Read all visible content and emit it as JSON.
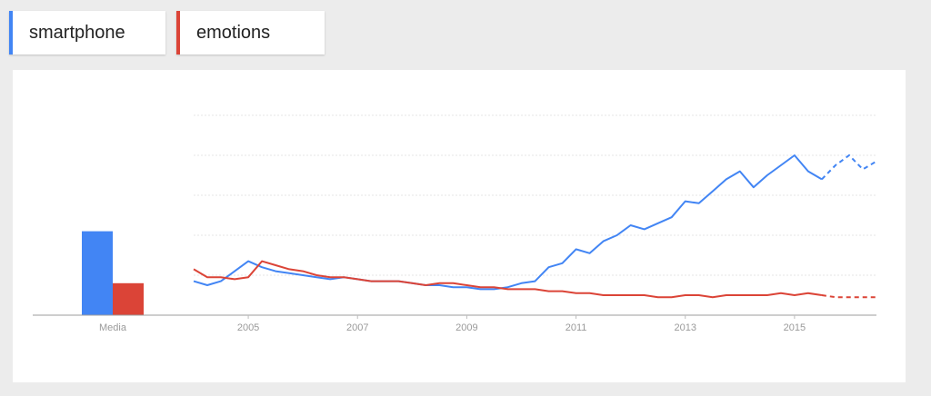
{
  "terms": [
    {
      "label": "smartphone",
      "color": "#4285f4"
    },
    {
      "label": "emotions",
      "color": "#db4437"
    }
  ],
  "average_label": "Media",
  "chart_data": [
    {
      "type": "bar",
      "categories": [
        "Media"
      ],
      "series": [
        {
          "name": "smartphone",
          "values": [
            21
          ],
          "color": "#4285f4"
        },
        {
          "name": "emotions",
          "values": [
            8
          ],
          "color": "#db4437"
        }
      ],
      "ylim": [
        0,
        50
      ]
    },
    {
      "type": "line",
      "xlim": [
        2004.0,
        2016.5
      ],
      "ylim": [
        0,
        100
      ],
      "x_ticks": [
        "2005",
        "2007",
        "2009",
        "2011",
        "2013",
        "2015"
      ],
      "grid": true,
      "forecast_from": 2015.5,
      "series": [
        {
          "name": "smartphone",
          "color": "#4285f4",
          "x": [
            2004.0,
            2004.25,
            2004.5,
            2004.75,
            2005.0,
            2005.25,
            2005.5,
            2005.75,
            2006.0,
            2006.25,
            2006.5,
            2006.75,
            2007.0,
            2007.25,
            2007.5,
            2007.75,
            2008.0,
            2008.25,
            2008.5,
            2008.75,
            2009.0,
            2009.25,
            2009.5,
            2009.75,
            2010.0,
            2010.25,
            2010.5,
            2010.75,
            2011.0,
            2011.25,
            2011.5,
            2011.75,
            2012.0,
            2012.25,
            2012.5,
            2012.75,
            2013.0,
            2013.25,
            2013.5,
            2013.75,
            2014.0,
            2014.25,
            2014.5,
            2014.75,
            2015.0,
            2015.25,
            2015.5,
            2015.75,
            2016.0,
            2016.25,
            2016.5
          ],
          "y": [
            17,
            15,
            17,
            22,
            27,
            24,
            22,
            21,
            20,
            19,
            18,
            19,
            18,
            17,
            17,
            17,
            16,
            15,
            15,
            14,
            14,
            13,
            13,
            14,
            16,
            17,
            24,
            26,
            33,
            31,
            37,
            40,
            45,
            43,
            46,
            49,
            57,
            56,
            62,
            68,
            72,
            64,
            70,
            75,
            80,
            72,
            68,
            75,
            80,
            73,
            77
          ]
        },
        {
          "name": "emotions",
          "color": "#db4437",
          "x": [
            2004.0,
            2004.25,
            2004.5,
            2004.75,
            2005.0,
            2005.25,
            2005.5,
            2005.75,
            2006.0,
            2006.25,
            2006.5,
            2006.75,
            2007.0,
            2007.25,
            2007.5,
            2007.75,
            2008.0,
            2008.25,
            2008.5,
            2008.75,
            2009.0,
            2009.25,
            2009.5,
            2009.75,
            2010.0,
            2010.25,
            2010.5,
            2010.75,
            2011.0,
            2011.25,
            2011.5,
            2011.75,
            2012.0,
            2012.25,
            2012.5,
            2012.75,
            2013.0,
            2013.25,
            2013.5,
            2013.75,
            2014.0,
            2014.25,
            2014.5,
            2014.75,
            2015.0,
            2015.25,
            2015.5,
            2015.75,
            2016.0,
            2016.25,
            2016.5
          ],
          "y": [
            23,
            19,
            19,
            18,
            19,
            27,
            25,
            23,
            22,
            20,
            19,
            19,
            18,
            17,
            17,
            17,
            16,
            15,
            16,
            16,
            15,
            14,
            14,
            13,
            13,
            13,
            12,
            12,
            11,
            11,
            10,
            10,
            10,
            10,
            9,
            9,
            10,
            10,
            9,
            10,
            10,
            10,
            10,
            11,
            10,
            11,
            10,
            9,
            9,
            9,
            9
          ]
        }
      ]
    }
  ]
}
